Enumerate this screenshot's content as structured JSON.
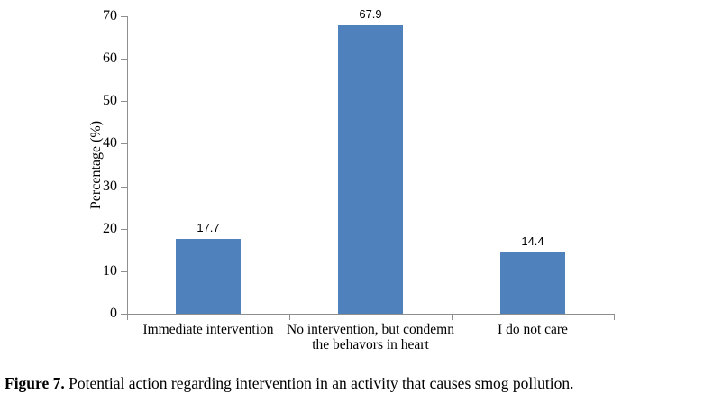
{
  "figure": {
    "caption_label": "Figure 7.",
    "caption_text": "Potential action regarding intervention in an activity that causes smog pollution."
  },
  "chart_data": {
    "type": "bar",
    "title": "",
    "xlabel": "",
    "ylabel": "Percentage (%)",
    "ylim": [
      0,
      70
    ],
    "yticks": [
      0,
      10,
      20,
      30,
      40,
      50,
      60,
      70
    ],
    "grid": false,
    "legend": "none",
    "bar_color": "#4f81bd",
    "axis_color": "#8e8e8e",
    "categories": [
      "Immediate intervention",
      "No intervention, but condemn the behavors in heart",
      "I do not care"
    ],
    "category_lines": [
      [
        "Immediate intervention"
      ],
      [
        "No intervention, but condemn",
        "the behavors in heart"
      ],
      [
        "I do not care"
      ]
    ],
    "values": [
      17.7,
      67.9,
      14.4
    ],
    "data_labels": [
      "17.7",
      "67.9",
      "14.4"
    ]
  }
}
